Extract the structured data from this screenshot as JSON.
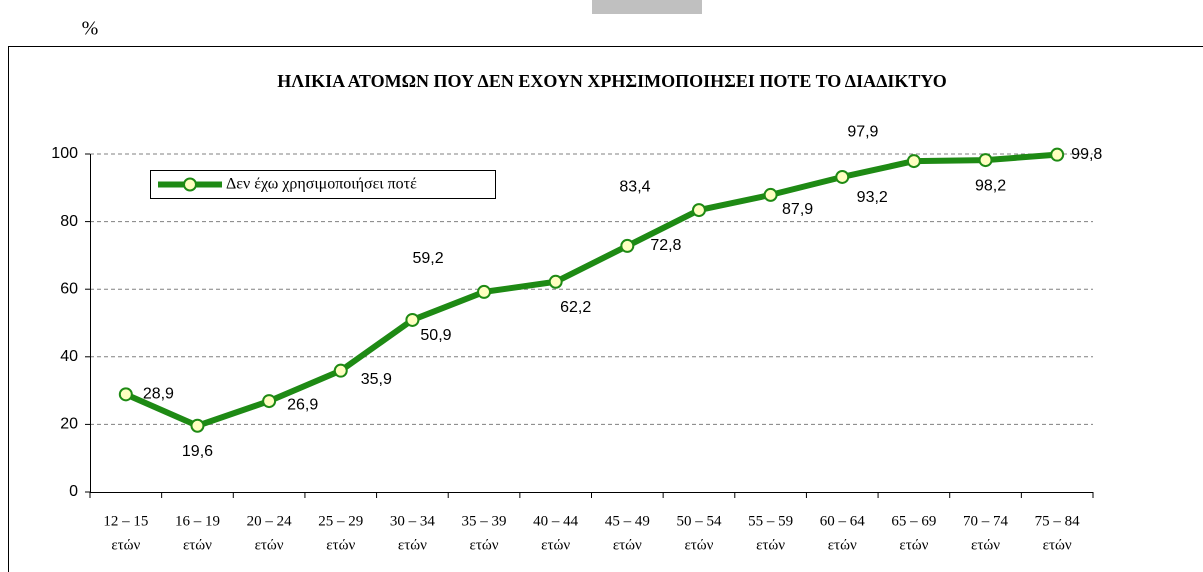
{
  "chart_data": {
    "type": "line",
    "title": "ΗΛΙΚΙΑ ΑΤΟΜΩΝ ΠΟΥ ΔΕΝ ΕΧΟΥΝ ΧΡΗΣΙΜΟΠΟΙΗΣΕΙ ΠΟΤΕ ΤΟ ΔΙΑΔΙΚΤΥΟ",
    "y_label": "%",
    "categories": [
      [
        "12 – 15",
        "ετών"
      ],
      [
        "16 – 19",
        "ετών"
      ],
      [
        "20 – 24",
        "ετών"
      ],
      [
        "25 – 29",
        "ετών"
      ],
      [
        "30 – 34",
        "ετών"
      ],
      [
        "35 – 39",
        "ετών"
      ],
      [
        "40 – 44",
        "ετών"
      ],
      [
        "45 – 49",
        "ετών"
      ],
      [
        "50 – 54",
        "ετών"
      ],
      [
        "55 – 59",
        "ετών"
      ],
      [
        "60 – 64",
        "ετών"
      ],
      [
        "65 – 69",
        "ετών"
      ],
      [
        "70 – 74",
        "ετών"
      ],
      [
        "75 – 84",
        "ετών"
      ]
    ],
    "series": [
      {
        "name": "Δεν έχω χρησιμοποιήσει ποτέ",
        "color": "#1e8a14",
        "marker_fill": "#ffffc0",
        "values": [
          28.9,
          19.6,
          26.9,
          35.9,
          50.9,
          59.2,
          62.2,
          72.8,
          83.4,
          87.9,
          93.2,
          97.9,
          98.2,
          99.8
        ],
        "value_labels": [
          "28,9",
          "19,6",
          "26,9",
          "35,9",
          "50,9",
          "59,2",
          "62,2",
          "72,8",
          "83,4",
          "87,9",
          "93,2",
          "97,9",
          "98,2",
          "99,8"
        ]
      }
    ],
    "ylim": [
      0,
      100
    ],
    "yticks": [
      0,
      20,
      40,
      60,
      80,
      100
    ],
    "grid": true
  }
}
